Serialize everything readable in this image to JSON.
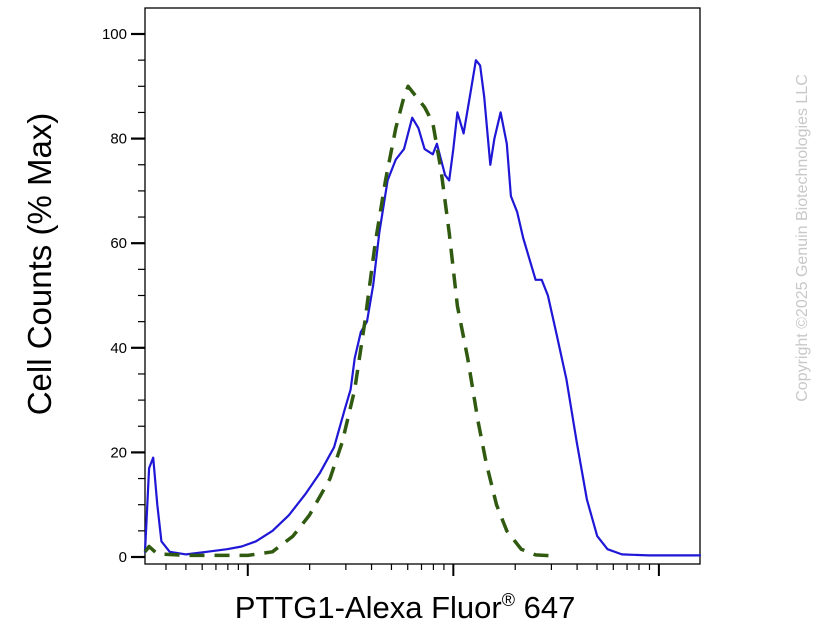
{
  "chart_data": {
    "type": "line",
    "title": "",
    "xlabel": {
      "main": "PTTG1-Alexa Fluor",
      "sup": "®",
      "tail": " 647"
    },
    "ylabel": "Cell Counts (% Max)",
    "x_scale": "log",
    "x_tick_labels_shown": false,
    "xlim": [
      0.5,
      3.2
    ],
    "ylim": [
      0,
      105
    ],
    "yticks": [
      0,
      20,
      40,
      60,
      80,
      100
    ],
    "ytick_labels": [
      "0",
      "20",
      "40",
      "60",
      "80",
      "100"
    ],
    "grid": false,
    "legend": "none",
    "series": [
      {
        "style": "solid",
        "color": "#1f17d6",
        "points": [
          [
            0.5,
            1
          ],
          [
            0.52,
            17
          ],
          [
            0.54,
            19
          ],
          [
            0.56,
            10
          ],
          [
            0.58,
            3
          ],
          [
            0.62,
            1
          ],
          [
            0.7,
            0.5
          ],
          [
            0.8,
            1
          ],
          [
            0.9,
            1.5
          ],
          [
            0.97,
            2
          ],
          [
            1.04,
            3
          ],
          [
            1.12,
            5
          ],
          [
            1.2,
            8
          ],
          [
            1.28,
            12
          ],
          [
            1.35,
            16
          ],
          [
            1.42,
            21
          ],
          [
            1.47,
            28
          ],
          [
            1.5,
            32
          ],
          [
            1.52,
            38
          ],
          [
            1.55,
            43
          ],
          [
            1.58,
            45
          ],
          [
            1.61,
            52
          ],
          [
            1.64,
            62
          ],
          [
            1.68,
            72
          ],
          [
            1.72,
            76
          ],
          [
            1.76,
            78
          ],
          [
            1.8,
            84
          ],
          [
            1.83,
            82
          ],
          [
            1.86,
            78
          ],
          [
            1.9,
            77
          ],
          [
            1.92,
            79
          ],
          [
            1.94,
            76
          ],
          [
            1.96,
            73
          ],
          [
            1.98,
            72
          ],
          [
            2.0,
            78
          ],
          [
            2.02,
            85
          ],
          [
            2.05,
            81
          ],
          [
            2.08,
            88
          ],
          [
            2.11,
            95
          ],
          [
            2.13,
            94
          ],
          [
            2.15,
            88
          ],
          [
            2.18,
            75
          ],
          [
            2.2,
            80
          ],
          [
            2.23,
            85
          ],
          [
            2.26,
            79
          ],
          [
            2.28,
            69
          ],
          [
            2.31,
            66
          ],
          [
            2.34,
            61
          ],
          [
            2.37,
            57
          ],
          [
            2.4,
            53
          ],
          [
            2.43,
            53
          ],
          [
            2.46,
            50
          ],
          [
            2.5,
            43
          ],
          [
            2.55,
            34
          ],
          [
            2.6,
            22
          ],
          [
            2.65,
            11
          ],
          [
            2.7,
            4
          ],
          [
            2.75,
            1.5
          ],
          [
            2.82,
            0.5
          ],
          [
            2.95,
            0.3
          ],
          [
            3.2,
            0.3
          ]
        ]
      },
      {
        "style": "dashed",
        "color": "#2f5a0f",
        "points": [
          [
            0.5,
            1
          ],
          [
            0.52,
            2
          ],
          [
            0.56,
            0.6
          ],
          [
            0.7,
            0.3
          ],
          [
            1.0,
            0.3
          ],
          [
            1.12,
            1
          ],
          [
            1.22,
            4
          ],
          [
            1.3,
            8
          ],
          [
            1.4,
            15
          ],
          [
            1.46,
            22
          ],
          [
            1.52,
            32
          ],
          [
            1.57,
            45
          ],
          [
            1.62,
            60
          ],
          [
            1.67,
            72
          ],
          [
            1.72,
            82
          ],
          [
            1.76,
            88
          ],
          [
            1.78,
            90
          ],
          [
            1.82,
            88
          ],
          [
            1.86,
            86
          ],
          [
            1.9,
            83
          ],
          [
            1.94,
            74
          ],
          [
            1.98,
            62
          ],
          [
            2.02,
            48
          ],
          [
            2.07,
            38
          ],
          [
            2.12,
            26
          ],
          [
            2.16,
            18
          ],
          [
            2.21,
            10
          ],
          [
            2.26,
            5
          ],
          [
            2.33,
            1.5
          ],
          [
            2.4,
            0.4
          ],
          [
            2.5,
            0.2
          ]
        ]
      }
    ]
  },
  "watermark": "Copyright ©2025 Genuin Biotechnologies LLC"
}
